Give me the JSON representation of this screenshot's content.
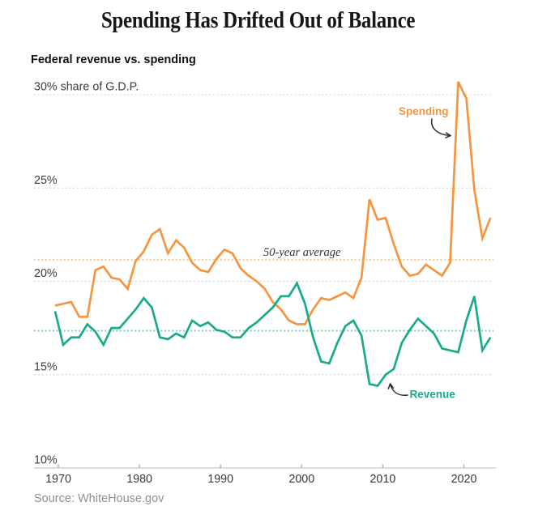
{
  "title": "Spending Has Drifted Out of Balance",
  "subtitle": "Federal revenue vs. spending",
  "source": "Source: WhiteHouse.gov",
  "chart_data": {
    "type": "line",
    "years": {
      "start": 1970,
      "end": 2024,
      "step": 1
    },
    "series": [
      {
        "name": "Spending",
        "color": "#F5953F",
        "average": 21.15,
        "average_color": "#FACD96",
        "values": [
          18.7,
          18.8,
          18.9,
          18.1,
          18.1,
          20.6,
          20.8,
          20.2,
          20.1,
          19.6,
          21.1,
          21.6,
          22.5,
          22.8,
          21.5,
          22.2,
          21.8,
          21.0,
          20.6,
          20.5,
          21.2,
          21.7,
          21.5,
          20.7,
          20.3,
          20.0,
          19.6,
          18.9,
          18.5,
          17.9,
          17.7,
          17.7,
          18.5,
          19.1,
          19.0,
          19.2,
          19.4,
          19.1,
          20.2,
          24.4,
          23.3,
          23.4,
          22.0,
          20.8,
          20.3,
          20.4,
          20.9,
          20.6,
          20.3,
          21.0,
          30.7,
          29.8,
          24.9,
          22.3,
          23.4
        ]
      },
      {
        "name": "Revenue",
        "color": "#19AA8B",
        "average": 17.35,
        "average_color": "#7CD4BB",
        "values": [
          18.4,
          16.6,
          17.0,
          17.0,
          17.7,
          17.3,
          16.6,
          17.5,
          17.5,
          18.0,
          18.5,
          19.1,
          18.6,
          17.0,
          16.9,
          17.2,
          17.0,
          17.9,
          17.6,
          17.8,
          17.4,
          17.3,
          17.0,
          17.0,
          17.5,
          17.8,
          18.2,
          18.6,
          19.2,
          19.2,
          19.9,
          18.8,
          17.0,
          15.7,
          15.6,
          16.7,
          17.6,
          17.9,
          17.1,
          14.5,
          14.4,
          15.0,
          15.3,
          16.7,
          17.4,
          18.0,
          17.6,
          17.2,
          16.4,
          16.3,
          16.2,
          17.9,
          19.2,
          16.3,
          17.0
        ]
      }
    ],
    "y_ticks": [
      {
        "value": 30,
        "label": "30% share of G.D.P."
      },
      {
        "value": 25,
        "label": "25%"
      },
      {
        "value": 20,
        "label": "20%"
      },
      {
        "value": 15,
        "label": "15%"
      },
      {
        "value": 10,
        "label": "10%"
      }
    ],
    "x_ticks": [
      {
        "value": 1970,
        "label": "1970"
      },
      {
        "value": 1980,
        "label": "1980"
      },
      {
        "value": 1990,
        "label": "1990"
      },
      {
        "value": 2000,
        "label": "2000"
      },
      {
        "value": 2010,
        "label": "2010"
      },
      {
        "value": 2020,
        "label": "2020"
      }
    ],
    "ylim": [
      10,
      31
    ],
    "grid": "horizontal-dotted",
    "annotations": {
      "average_note": "50-year average",
      "spending_label": "Spending",
      "revenue_label": "Revenue"
    }
  }
}
